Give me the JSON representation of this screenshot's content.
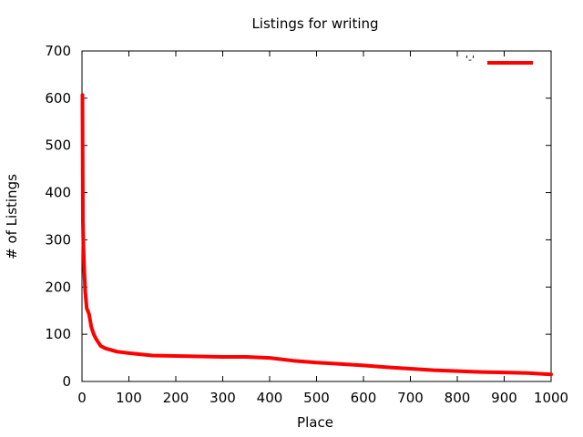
{
  "chart_data": {
    "type": "line",
    "title": "Listings for writing",
    "xlabel": "Place",
    "ylabel": "# of Listings",
    "xlim": [
      0,
      1000
    ],
    "ylim": [
      0,
      700
    ],
    "xticks": [
      0,
      100,
      200,
      300,
      400,
      500,
      600,
      700,
      800,
      900,
      1000
    ],
    "yticks": [
      0,
      100,
      200,
      300,
      400,
      500,
      600,
      700
    ],
    "grid": false,
    "legend": "top-right",
    "series": [
      {
        "name": "'-'",
        "color": "#ff0000",
        "x": [
          1,
          2,
          3,
          5,
          7,
          10,
          15,
          20,
          25,
          30,
          40,
          50,
          75,
          100,
          150,
          200,
          250,
          300,
          350,
          400,
          450,
          500,
          550,
          600,
          650,
          700,
          750,
          800,
          850,
          900,
          950,
          1000
        ],
        "y": [
          607,
          340,
          290,
          230,
          190,
          155,
          143,
          115,
          100,
          90,
          75,
          70,
          63,
          60,
          55,
          54,
          53,
          52,
          52,
          50,
          44,
          40,
          37,
          34,
          30,
          27,
          24,
          22,
          20,
          19,
          18,
          15
        ]
      }
    ]
  }
}
